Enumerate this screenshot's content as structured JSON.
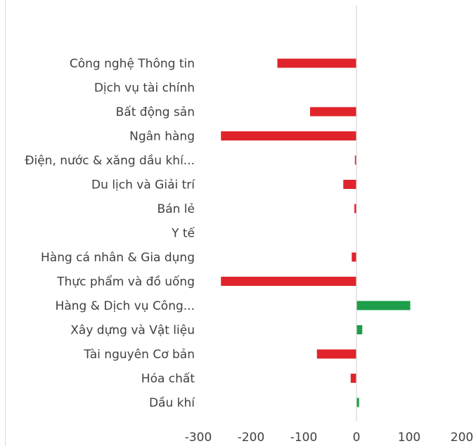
{
  "chart_data": {
    "type": "bar",
    "orientation": "horizontal",
    "title": "",
    "xlabel": "",
    "ylabel": "",
    "categories": [
      "Công nghệ Thông tin",
      "Dịch vụ tài chính",
      "Bất động sản",
      "Ngân hàng",
      "Điện, nước & xăng dầu khí...",
      "Du lịch và Giải trí",
      "Bán lẻ",
      "Y tế",
      "Hàng cá nhân & Gia dụng",
      "Thực phẩm và đồ uống",
      "Hàng & Dịch vụ Công...",
      "Xây dựng và Vật liệu",
      "Tài nguyên Cơ bản",
      "Hóa chất",
      "Dầu khí"
    ],
    "values": [
      -150,
      0,
      -88,
      -257,
      -3,
      -25,
      -4,
      0,
      -9,
      -257,
      102,
      11,
      -75,
      -11,
      5
    ],
    "xlim": [
      -300,
      200
    ],
    "xticks": [
      -300,
      -200,
      -100,
      0,
      100,
      200
    ],
    "grid": false,
    "legend": "none",
    "colors": {
      "positive": "#1e9e4a",
      "negative": "#e0242b",
      "axis": "#d9d9d9",
      "text": "#404040"
    }
  }
}
